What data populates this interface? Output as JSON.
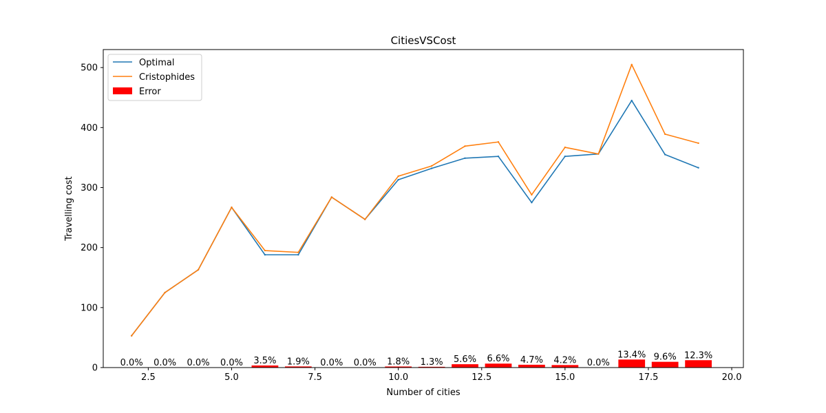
{
  "chart_data": {
    "type": "line",
    "title": "CitiesVSCost",
    "xlabel": "Number of cities",
    "ylabel": "Travelling cost",
    "xlim": [
      1.15,
      20.35
    ],
    "ylim": [
      0,
      530
    ],
    "xticks": [
      2.5,
      5.0,
      7.5,
      10.0,
      12.5,
      15.0,
      17.5,
      20.0
    ],
    "xtick_labels": [
      "2.5",
      "5.0",
      "7.5",
      "10.0",
      "12.5",
      "15.0",
      "17.5",
      "20.0"
    ],
    "yticks": [
      0,
      100,
      200,
      300,
      400,
      500
    ],
    "ytick_labels": [
      "0",
      "100",
      "200",
      "300",
      "400",
      "500"
    ],
    "grid": false,
    "legend_position": "top-left",
    "x": [
      2,
      3,
      4,
      5,
      6,
      7,
      8,
      9,
      10,
      11,
      12,
      13,
      14,
      15,
      16,
      17,
      18,
      19
    ],
    "series": [
      {
        "name": "Optimal",
        "kind": "line",
        "color": "#1f77b4",
        "values": [
          53,
          125,
          163,
          267,
          188,
          188,
          284,
          247,
          313,
          332,
          349,
          352,
          275,
          352,
          356,
          445,
          355,
          333
        ]
      },
      {
        "name": "Cristophides",
        "kind": "line",
        "color": "#ff7f0e",
        "values": [
          53,
          125,
          163,
          267,
          195,
          192,
          284,
          247,
          319,
          336,
          369,
          376,
          288,
          367,
          356,
          505,
          389,
          374
        ]
      },
      {
        "name": "Error",
        "kind": "bar",
        "color": "#ff0000",
        "values": [
          0.0,
          0.0,
          0.0,
          0.0,
          3.5,
          1.9,
          0.0,
          0.0,
          1.8,
          1.3,
          5.6,
          6.6,
          4.7,
          4.2,
          0.0,
          13.4,
          9.6,
          12.3
        ],
        "labels": [
          "0.0%",
          "0.0%",
          "0.0%",
          "0.0%",
          "3.5%",
          "1.9%",
          "0.0%",
          "0.0%",
          "1.8%",
          "1.3%",
          "5.6%",
          "6.6%",
          "4.7%",
          "4.2%",
          "0.0%",
          "13.4%",
          "9.6%",
          "12.3%"
        ]
      }
    ]
  }
}
